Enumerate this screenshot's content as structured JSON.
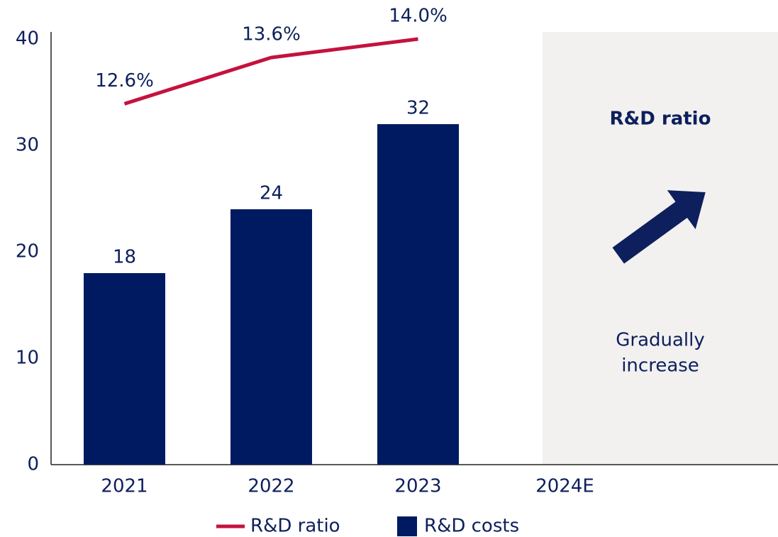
{
  "chart_data": {
    "type": "bar",
    "categories": [
      "2021",
      "2022",
      "2023",
      "2024E"
    ],
    "series": [
      {
        "name": "R&D costs",
        "type": "bar",
        "color": "#001a62",
        "values": [
          18,
          24,
          32,
          null
        ],
        "value_labels": [
          "18",
          "24",
          "32",
          null
        ]
      },
      {
        "name": "R&D ratio",
        "type": "line",
        "axis": "y2",
        "color": "#c4123e",
        "values": [
          12.6,
          13.6,
          14.0,
          null
        ],
        "value_labels": [
          "12.6%",
          "13.6%",
          "14.0%",
          null
        ]
      }
    ],
    "ylim": [
      0,
      40
    ],
    "yticks": [
      0,
      10,
      20,
      30,
      40
    ],
    "y2lim": [
      4.8,
      14.0
    ],
    "annotation": {
      "title": "R&D ratio",
      "lines": [
        "Gradually",
        "increase"
      ]
    },
    "legend": "bottom"
  }
}
